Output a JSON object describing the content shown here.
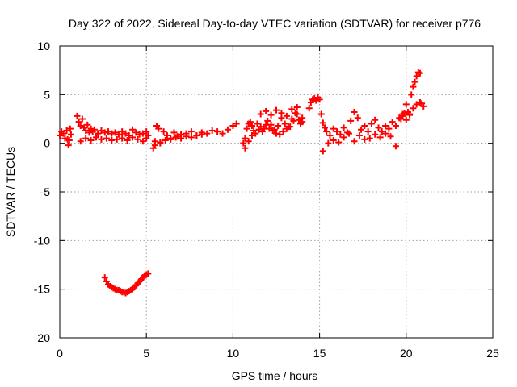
{
  "chart_data": {
    "type": "scatter",
    "title": "Day 322 of 2022, Sidereal Day-to-day VTEC variation (SDTVAR) for receiver p776",
    "xlabel": "GPS time / hours",
    "ylabel": "SDTVAR / TECUs",
    "xlim": [
      0,
      25
    ],
    "ylim": [
      -20,
      10
    ],
    "x_ticks": [
      0,
      5,
      10,
      15,
      20,
      25
    ],
    "x_tick_labels": [
      "0",
      "5",
      "10",
      "15",
      "20",
      "25"
    ],
    "y_ticks": [
      -20,
      -15,
      -10,
      -5,
      0,
      5,
      10
    ],
    "y_tick_labels": [
      "-20",
      "-15",
      "-10",
      "-5",
      "0",
      "5",
      "10"
    ],
    "grid": true,
    "marker": "+",
    "colors": {
      "series": "#ff0000",
      "axis": "#000000",
      "grid": "#a0a0a0"
    },
    "series": [
      {
        "name": "SDTVAR",
        "color": "#ff0000",
        "x": [
          0.0,
          0.1,
          0.2,
          0.3,
          0.4,
          0.45,
          0.5,
          0.55,
          0.6,
          0.65,
          1.0,
          1.1,
          1.2,
          1.3,
          1.4,
          1.5,
          1.6,
          1.7,
          1.8,
          1.9,
          2.0,
          2.2,
          2.4,
          2.6,
          2.8,
          3.0,
          3.2,
          3.4,
          3.6,
          3.8,
          4.0,
          4.2,
          4.4,
          4.6,
          4.8,
          5.0,
          5.1,
          1.2,
          1.5,
          1.8,
          2.1,
          2.4,
          2.7,
          3.0,
          3.3,
          3.6,
          3.9,
          4.2,
          4.5,
          4.8,
          5.0,
          5.4,
          5.5,
          5.6,
          5.7,
          5.8,
          6.0,
          6.2,
          6.4,
          6.6,
          6.8,
          7.0,
          7.3,
          7.6,
          7.9,
          8.2,
          8.5,
          8.8,
          9.1,
          9.4,
          9.7,
          10.0,
          10.2,
          5.5,
          5.8,
          6.1,
          6.4,
          6.7,
          7.0,
          7.3,
          7.6,
          7.9,
          8.2,
          10.6,
          10.7,
          10.8,
          10.9,
          11.0,
          11.1,
          11.2,
          11.4,
          11.6,
          11.8,
          12.0,
          12.2,
          12.4,
          12.6,
          12.8,
          13.0,
          13.2,
          13.4,
          13.6,
          13.8,
          14.0,
          10.7,
          10.9,
          11.1,
          11.3,
          11.5,
          11.7,
          11.9,
          12.1,
          12.3,
          12.5,
          12.7,
          12.9,
          13.1,
          13.3,
          13.5,
          13.7,
          13.9,
          11.6,
          11.9,
          12.2,
          12.5,
          12.8,
          13.1,
          13.4,
          13.7,
          14.0,
          14.4,
          14.5,
          14.6,
          14.7,
          14.8,
          14.9,
          15.0,
          15.1,
          15.2,
          15.3,
          15.4,
          15.6,
          15.8,
          16.0,
          16.2,
          16.4,
          16.6,
          16.8,
          17.0,
          17.2,
          17.4,
          17.6,
          17.8,
          18.0,
          18.2,
          18.4,
          18.6,
          18.8,
          19.0,
          19.2,
          19.4,
          19.6,
          19.8,
          15.2,
          15.5,
          15.8,
          16.1,
          16.4,
          16.7,
          17.0,
          17.3,
          17.6,
          17.9,
          18.2,
          18.5,
          18.8,
          19.1,
          19.4,
          19.7,
          19.8,
          19.9,
          20.0,
          20.1,
          20.2,
          20.3,
          20.4,
          20.5,
          20.6,
          20.7,
          20.8,
          20.9,
          20.0,
          20.2,
          20.4,
          20.6,
          20.8,
          21.0,
          2.6,
          2.7,
          2.8,
          2.9,
          3.0,
          3.1,
          3.2,
          3.3,
          3.4,
          3.5,
          3.6,
          3.7,
          3.8,
          3.9,
          4.0,
          4.1,
          4.2,
          4.3,
          4.4,
          4.5,
          4.6,
          4.7,
          4.8,
          4.9,
          5.0,
          5.1
        ],
        "y": [
          0.8,
          1.2,
          1.0,
          0.5,
          1.3,
          0.4,
          -0.2,
          0.3,
          1.5,
          0.9,
          2.8,
          2.2,
          1.8,
          2.5,
          1.6,
          1.3,
          1.9,
          1.1,
          1.5,
          1.2,
          1.4,
          1.0,
          1.3,
          1.1,
          1.2,
          1.0,
          1.1,
          0.9,
          1.2,
          1.0,
          0.8,
          1.4,
          1.1,
          0.9,
          1.0,
          1.2,
          0.8,
          0.2,
          0.5,
          0.3,
          0.6,
          0.4,
          0.5,
          0.3,
          0.4,
          0.5,
          0.3,
          0.6,
          0.4,
          0.2,
          0.5,
          -0.5,
          0.2,
          1.8,
          1.5,
          0.0,
          1.2,
          0.8,
          0.5,
          1.1,
          0.7,
          0.9,
          1.0,
          1.2,
          0.8,
          1.1,
          1.0,
          1.3,
          1.2,
          1.0,
          1.4,
          1.8,
          2.0,
          -0.2,
          0.1,
          0.3,
          0.4,
          0.6,
          0.5,
          0.7,
          0.6,
          0.8,
          0.9,
          0.0,
          0.5,
          1.5,
          2.0,
          2.2,
          1.8,
          1.3,
          2.0,
          1.7,
          1.5,
          2.3,
          1.9,
          1.4,
          1.8,
          2.6,
          2.0,
          1.7,
          2.5,
          3.1,
          2.4,
          2.2,
          -0.5,
          0.2,
          0.8,
          1.0,
          1.4,
          1.2,
          1.9,
          1.5,
          1.3,
          1.0,
          0.9,
          1.2,
          1.5,
          1.7,
          2.3,
          3.0,
          2.0,
          3.0,
          3.3,
          2.9,
          3.4,
          3.1,
          2.8,
          3.5,
          3.7,
          2.6,
          3.6,
          4.2,
          4.5,
          4.6,
          4.4,
          4.7,
          4.5,
          3.0,
          2.1,
          1.6,
          1.2,
          0.8,
          1.5,
          1.2,
          0.9,
          1.6,
          1.1,
          2.3,
          3.2,
          2.6,
          1.4,
          1.8,
          1.2,
          2.0,
          2.4,
          1.6,
          1.2,
          1.8,
          1.5,
          2.2,
          1.8,
          2.6,
          3.0,
          -0.8,
          0.0,
          0.3,
          0.1,
          0.6,
          1.0,
          0.2,
          0.8,
          0.4,
          0.5,
          0.9,
          0.6,
          1.0,
          0.7,
          -0.3,
          2.5,
          2.8,
          3.1,
          4.0,
          3.2,
          2.9,
          5.0,
          5.8,
          6.3,
          6.9,
          7.3,
          7.2,
          4.1,
          2.4,
          3.0,
          3.6,
          4.0,
          4.2,
          3.8,
          -13.8,
          -14.2,
          -14.5,
          -14.7,
          -14.8,
          -14.9,
          -15.0,
          -15.1,
          -15.1,
          -15.2,
          -15.3,
          -15.3,
          -15.4,
          -15.3,
          -15.2,
          -15.1,
          -15.0,
          -14.8,
          -14.6,
          -14.4,
          -14.2,
          -14.0,
          -13.8,
          -13.6,
          -13.5,
          -13.4
        ]
      }
    ]
  }
}
